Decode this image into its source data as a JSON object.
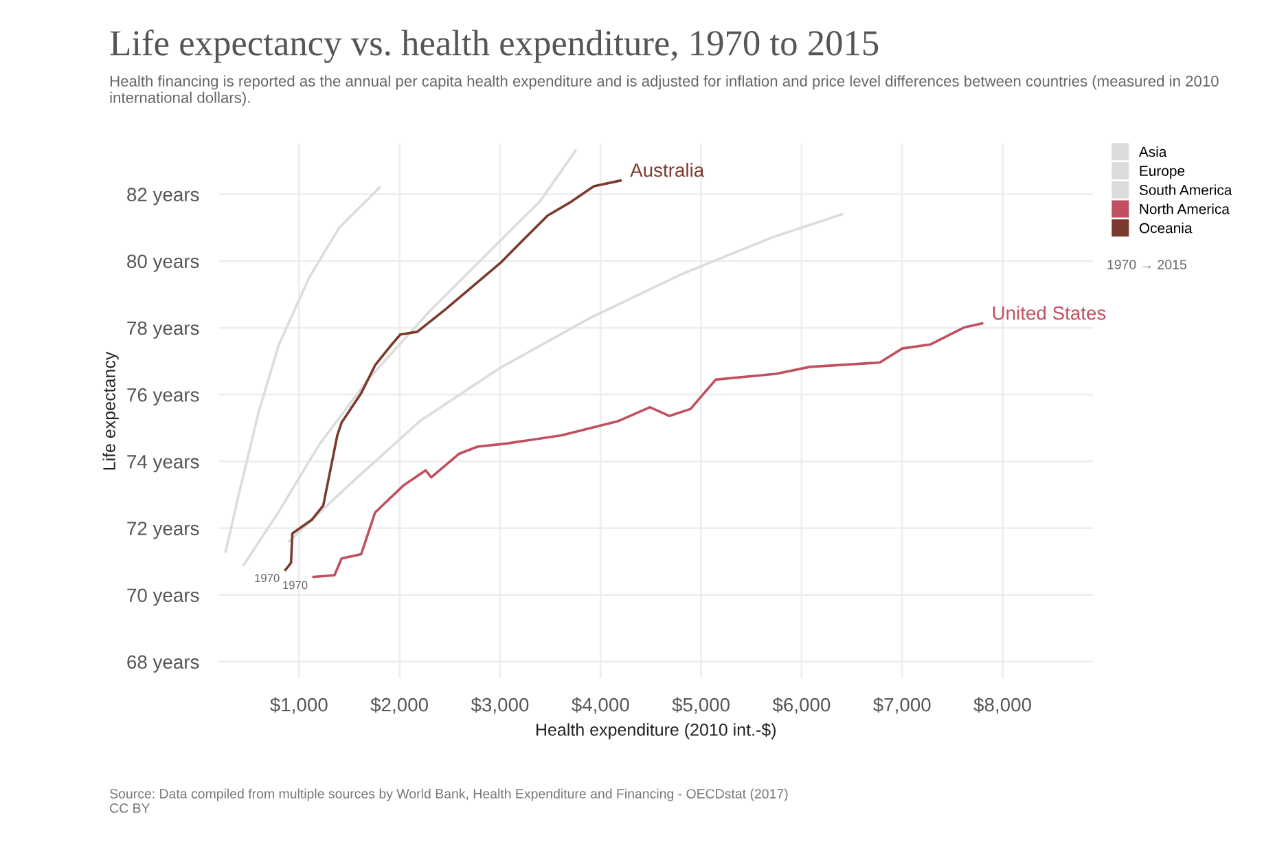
{
  "chart_data": {
    "type": "line",
    "title": "Life expectancy vs. health expenditure, 1970 to 2015",
    "subtitle": "Health financing is reported as the annual per capita health expenditure and is adjusted for inflation and price level differences between countries (measured in 2010 international dollars).",
    "xlabel": "Health expenditure (2010 int.-$)",
    "ylabel": "Life expectancy",
    "xlim": [
      200,
      8900
    ],
    "ylim": [
      67.5,
      83.5
    ],
    "xticks": [
      {
        "value": 1000,
        "label": "$1,000"
      },
      {
        "value": 2000,
        "label": "$2,000"
      },
      {
        "value": 3000,
        "label": "$3,000"
      },
      {
        "value": 4000,
        "label": "$4,000"
      },
      {
        "value": 5000,
        "label": "$5,000"
      },
      {
        "value": 6000,
        "label": "$6,000"
      },
      {
        "value": 7000,
        "label": "$7,000"
      },
      {
        "value": 8000,
        "label": "$8,000"
      }
    ],
    "yticks": [
      {
        "value": 68,
        "label": "68 years"
      },
      {
        "value": 70,
        "label": "70 years"
      },
      {
        "value": 72,
        "label": "72 years"
      },
      {
        "value": 74,
        "label": "74 years"
      },
      {
        "value": 76,
        "label": "76 years"
      },
      {
        "value": 78,
        "label": "78 years"
      },
      {
        "value": 80,
        "label": "80 years"
      },
      {
        "value": 82,
        "label": "82 years"
      }
    ],
    "grid": true,
    "legend": "right",
    "marker": "none",
    "line_style": "solid",
    "series": [
      {
        "name": "Asia",
        "color": "#dcdcdc",
        "x": [
          270,
          400,
          600,
          800,
          1100,
          1400,
          1800
        ],
        "values": [
          71.3,
          73.0,
          75.5,
          77.5,
          79.5,
          81.0,
          82.2
        ]
      },
      {
        "name": "Europe",
        "color": "#dcdcdc",
        "x": [
          450,
          800,
          1200,
          1700,
          2300,
          2900,
          3400,
          3750
        ],
        "values": [
          70.9,
          72.5,
          74.5,
          76.5,
          78.5,
          80.3,
          81.8,
          83.3
        ]
      },
      {
        "name": "South America",
        "color": "#dcdcdc",
        "x": [
          900,
          1500,
          2200,
          3000,
          3900,
          4800,
          5700,
          6400
        ],
        "values": [
          71.6,
          73.3,
          75.2,
          76.8,
          78.3,
          79.6,
          80.7,
          81.4
        ]
      },
      {
        "name": "North America",
        "color": "#c0505f",
        "x": [
          1144,
          1353,
          1423,
          1618,
          1757,
          2036,
          2259,
          2315,
          2594,
          2775,
          3054,
          3612,
          4170,
          4491,
          4686,
          4895,
          5146,
          5746,
          6081,
          6778,
          7001,
          7280,
          7615,
          7796
        ],
        "values": [
          70.54,
          70.59,
          71.09,
          71.22,
          72.47,
          73.27,
          73.73,
          73.52,
          74.23,
          74.44,
          74.53,
          74.78,
          75.2,
          75.62,
          75.36,
          75.57,
          76.45,
          76.62,
          76.83,
          76.96,
          77.38,
          77.5,
          78.01,
          78.13
        ]
      },
      {
        "name": "Oceania",
        "color": "#7a3b2e",
        "x": [
          865,
          920,
          934,
          1130,
          1241,
          1381,
          1423,
          1618,
          1757,
          1911,
          2008,
          2176,
          2455,
          2734,
          3013,
          3236,
          3473,
          3710,
          3933,
          4198
        ],
        "values": [
          70.75,
          70.96,
          71.84,
          72.26,
          72.68,
          74.78,
          75.16,
          76.04,
          76.88,
          77.46,
          77.8,
          77.88,
          78.55,
          79.26,
          79.97,
          80.65,
          81.36,
          81.78,
          82.24,
          82.41
        ]
      }
    ],
    "annotations": [
      {
        "text": "Australia",
        "x": 4198,
        "y": 82.41
      },
      {
        "text": "United States",
        "x": 7796,
        "y": 78.13
      },
      {
        "text": "1970",
        "x": 865,
        "y": 70.75
      },
      {
        "text": "1970",
        "x": 1144,
        "y": 70.54
      },
      "1970 → 2015",
      "Source: Data compiled from multiple sources by World Bank, Health Expenditure and Financing - OECDstat (2017)\nCC BY"
    ]
  }
}
